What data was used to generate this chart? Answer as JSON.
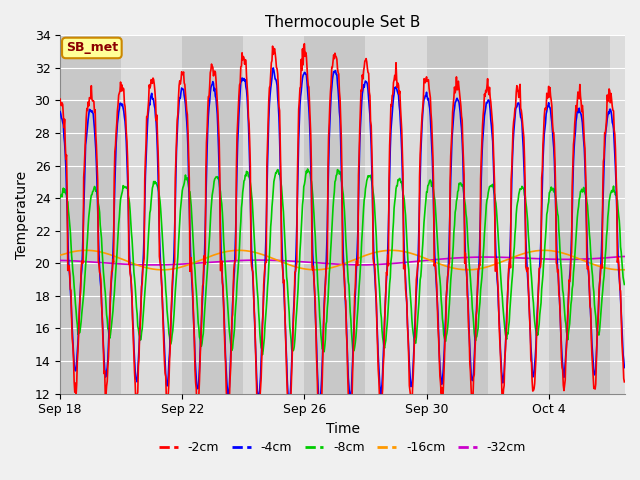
{
  "title": "Thermocouple Set B",
  "xlabel": "Time",
  "ylabel": "Temperature",
  "ylim": [
    12,
    34
  ],
  "yticks": [
    12,
    14,
    16,
    18,
    20,
    22,
    24,
    26,
    28,
    30,
    32,
    34
  ],
  "xtick_labels": [
    "Sep 18",
    "Sep 22",
    "Sep 26",
    "Sep 30",
    "Oct 4"
  ],
  "xtick_positions": [
    0,
    4,
    8,
    12,
    16
  ],
  "series_colors": [
    "#ff0000",
    "#0000ff",
    "#00cc00",
    "#ff9900",
    "#cc00cc"
  ],
  "series_labels": [
    "-2cm",
    "-4cm",
    "-8cm",
    "-16cm",
    "-32cm"
  ],
  "annotation_text": "SB_met",
  "annotation_box_color": "#ffff99",
  "annotation_border_color": "#cc8800",
  "plot_bg_light": "#dcdcdc",
  "plot_bg_dark": "#c8c8c8",
  "grid_color": "#ffffff",
  "fig_bg_color": "#f0f0f0",
  "title_fontsize": 11,
  "axis_fontsize": 10,
  "tick_fontsize": 9,
  "legend_fontsize": 9,
  "line_width": 1.2,
  "total_days": 18.5
}
